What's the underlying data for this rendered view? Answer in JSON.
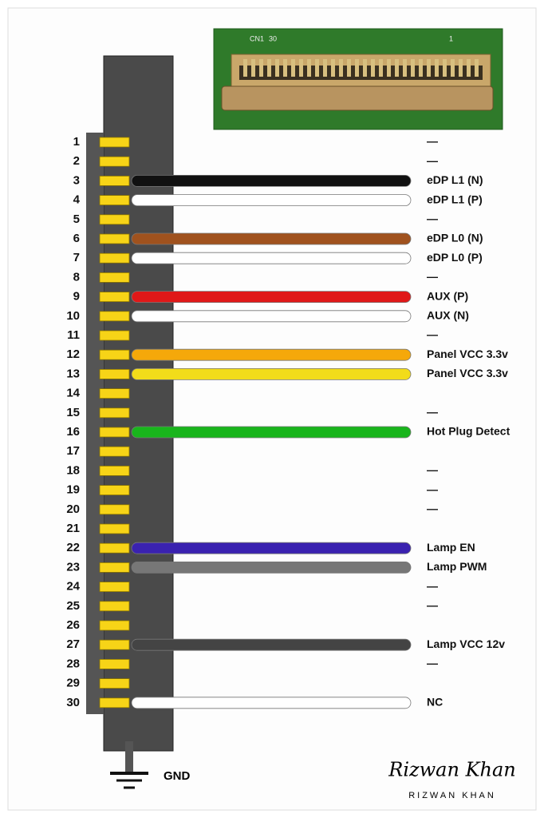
{
  "board": {
    "ref": "CN1",
    "first_pin": "30",
    "last_pin": "1"
  },
  "pins": [
    {
      "number": "1",
      "label": "—"
    },
    {
      "number": "2",
      "label": "—"
    },
    {
      "number": "3",
      "label": "eDP L1 (N)",
      "wire": "#111111"
    },
    {
      "number": "4",
      "label": "eDP L1 (P)",
      "wire": "#ffffff"
    },
    {
      "number": "5",
      "label": "—"
    },
    {
      "number": "6",
      "label": "eDP L0 (N)",
      "wire": "#a0521e"
    },
    {
      "number": "7",
      "label": "eDP L0 (P)",
      "wire": "#ffffff"
    },
    {
      "number": "8",
      "label": "—"
    },
    {
      "number": "9",
      "label": "AUX (P)",
      "wire": "#e01818"
    },
    {
      "number": "10",
      "label": "AUX (N)",
      "wire": "#ffffff"
    },
    {
      "number": "11",
      "label": "—"
    },
    {
      "number": "12",
      "label": "Panel VCC 3.3v",
      "wire": "#f5a80a"
    },
    {
      "number": "13",
      "label": "Panel VCC 3.3v",
      "wire": "#f2dc1a"
    },
    {
      "number": "14"
    },
    {
      "number": "15",
      "label": "—"
    },
    {
      "number": "16",
      "label": "Hot Plug Detect",
      "wire": "#19b51c"
    },
    {
      "number": "17"
    },
    {
      "number": "18",
      "label": "—"
    },
    {
      "number": "19",
      "label": "—"
    },
    {
      "number": "20",
      "label": "—"
    },
    {
      "number": "21"
    },
    {
      "number": "22",
      "label": "Lamp EN",
      "wire": "#3a22b0"
    },
    {
      "number": "23",
      "label": "Lamp PWM",
      "wire": "#777777"
    },
    {
      "number": "24",
      "label": "—"
    },
    {
      "number": "25",
      "label": "—"
    },
    {
      "number": "26"
    },
    {
      "number": "27",
      "label": "Lamp VCC 12v",
      "wire": "#444444"
    },
    {
      "number": "28",
      "label": "—"
    },
    {
      "number": "29"
    },
    {
      "number": "30",
      "label": "NC",
      "wire": "#ffffff"
    }
  ],
  "ground": "GND",
  "signature": {
    "script": "Rizwan Khan",
    "caps": "RIZWAN KHAN"
  }
}
